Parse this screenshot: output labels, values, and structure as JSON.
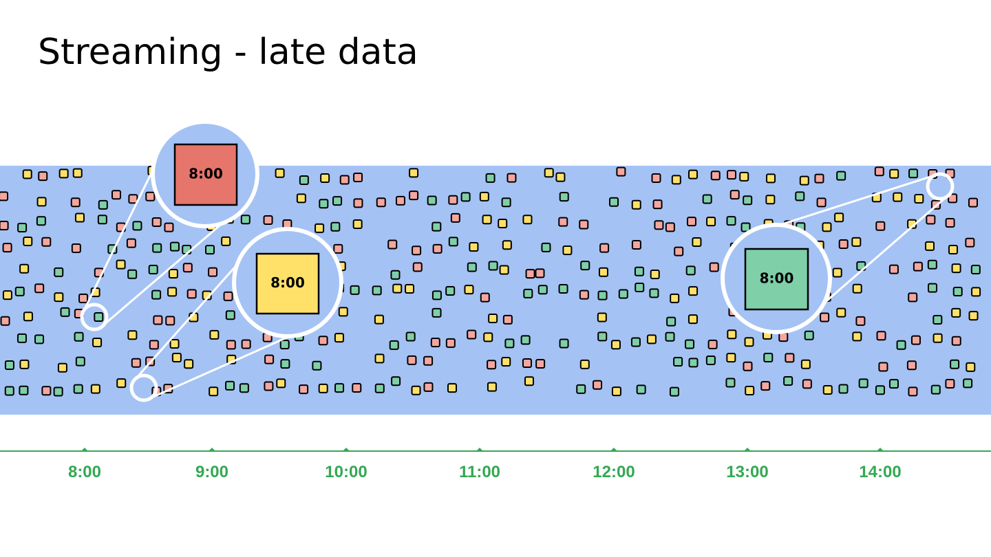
{
  "title": "Streaming - late data",
  "timeline": {
    "labels": [
      "8:00",
      "9:00",
      "10:00",
      "11:00",
      "12:00",
      "13:00",
      "14:00"
    ]
  },
  "callouts": [
    {
      "label": "8:00",
      "color": "#e6756b"
    },
    {
      "label": "8:00",
      "color": "#ffe169"
    },
    {
      "label": "8:00",
      "color": "#7fcfa9"
    }
  ]
}
